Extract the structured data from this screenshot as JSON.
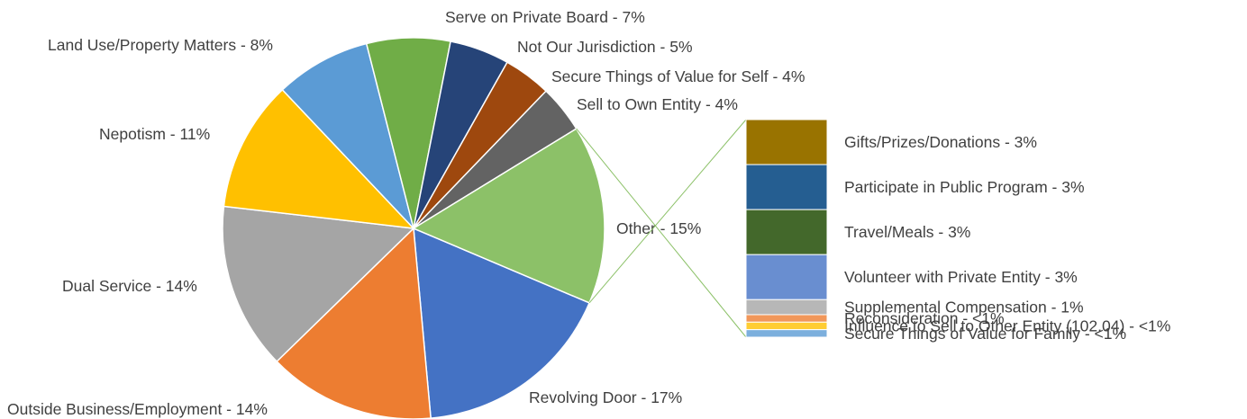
{
  "chart_data": {
    "type": "bar-of-pie",
    "pie": {
      "slices": [
        {
          "label": "Revolving Door - 17%",
          "value": 17,
          "color": "#4472C4"
        },
        {
          "label": "Outside Business/Employment - 14%",
          "value": 14,
          "color": "#ED7D31"
        },
        {
          "label": "Dual Service - 14%",
          "value": 14,
          "color": "#A5A5A5"
        },
        {
          "label": "Nepotism - 11%",
          "value": 11,
          "color": "#FFC000"
        },
        {
          "label": "Land Use/Property Matters - 8%",
          "value": 8,
          "color": "#5B9BD5"
        },
        {
          "label": "Serve on Private Board - 7%",
          "value": 7,
          "color": "#70AD47"
        },
        {
          "label": "Not Our Jurisdiction - 5%",
          "value": 5,
          "color": "#264478"
        },
        {
          "label": "Secure Things of Value for Self - 4%",
          "value": 4,
          "color": "#9E480E"
        },
        {
          "label": "Sell to Own Entity - 4%",
          "value": 4,
          "color": "#636363"
        },
        {
          "label": "Other - 15%",
          "value": 15,
          "color": "#8CC168"
        }
      ]
    },
    "bar": {
      "parent": "Other - 15%",
      "segments": [
        {
          "label": "Gifts/Prizes/Donations - 3%",
          "value": 3,
          "color": "#997300"
        },
        {
          "label": "Participate in Public Program - 3%",
          "value": 3,
          "color": "#255E91"
        },
        {
          "label": "Travel/Meals - 3%",
          "value": 3,
          "color": "#43682B"
        },
        {
          "label": "Volunteer with Private Entity - 3%",
          "value": 3,
          "color": "#698ED0"
        },
        {
          "label": "Supplemental Compensation - 1%",
          "value": 1,
          "color": "#B7B7B7"
        },
        {
          "label": "Reconsideration - <1%",
          "value": 0.5,
          "color": "#F1975A"
        },
        {
          "label": "Influence to Sell to Other Entity (102.04) - <1%",
          "value": 0.5,
          "color": "#FFCD33"
        },
        {
          "label": "Secure Things of Value for Family - <1%",
          "value": 0.5,
          "color": "#7CAFDD"
        }
      ]
    },
    "title": "",
    "legend": "none",
    "connector_color": "#8CC168"
  }
}
